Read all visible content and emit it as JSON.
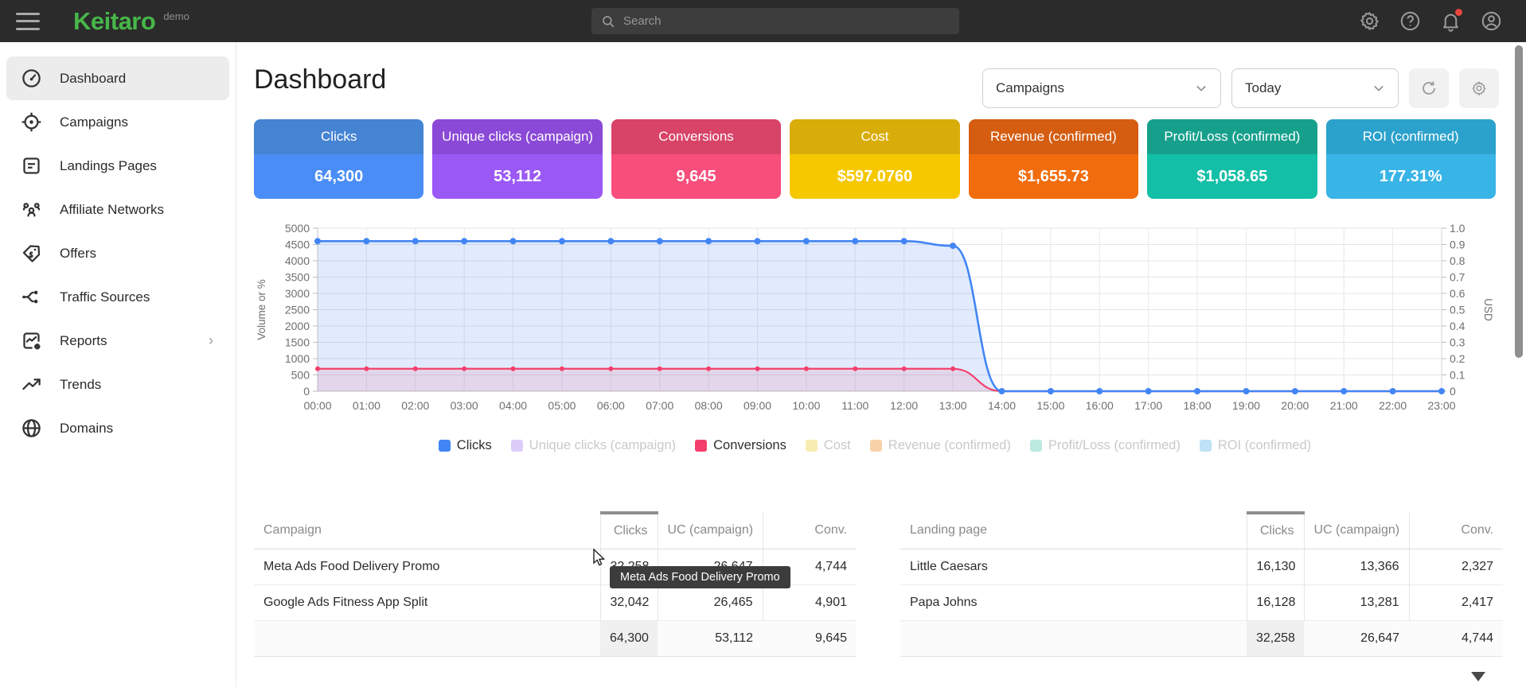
{
  "topbar": {
    "logo": "Keitaro",
    "env": "demo",
    "search_placeholder": "Search",
    "icons": [
      "settings-icon",
      "help-icon",
      "notifications-icon",
      "account-icon"
    ],
    "notification_dot_color": "#e8453c"
  },
  "sidebar": {
    "items": [
      {
        "label": "Dashboard",
        "icon": "dashboard",
        "active": true
      },
      {
        "label": "Campaigns",
        "icon": "campaigns",
        "active": false
      },
      {
        "label": "Landings Pages",
        "icon": "landings",
        "active": false
      },
      {
        "label": "Affiliate Networks",
        "icon": "affiliate",
        "active": false
      },
      {
        "label": "Offers",
        "icon": "offers",
        "active": false
      },
      {
        "label": "Traffic Sources",
        "icon": "traffic",
        "active": false
      },
      {
        "label": "Reports",
        "icon": "reports",
        "active": false,
        "has_submenu": true
      },
      {
        "label": "Trends",
        "icon": "trends",
        "active": false
      },
      {
        "label": "Domains",
        "icon": "domains",
        "active": false
      }
    ]
  },
  "header": {
    "title": "Dashboard",
    "campaign_filter": "Campaigns",
    "date_range": "Today"
  },
  "cards": [
    {
      "label": "Clicks",
      "value": "64,300",
      "header_color": "#4583d3",
      "body_color": "#4a8df6"
    },
    {
      "label": "Unique clicks (campaign)",
      "value": "53,112",
      "header_color": "#8b49d7",
      "body_color": "#9a58f5"
    },
    {
      "label": "Conversions",
      "value": "9,645",
      "header_color": "#d84368",
      "body_color": "#f74e7b"
    },
    {
      "label": "Cost",
      "value": "$597.0760",
      "header_color": "#d9ad09",
      "body_color": "#f6c800"
    },
    {
      "label": "Revenue (confirmed)",
      "value": "$1,655.73",
      "header_color": "#d45d11",
      "body_color": "#f16c0c"
    },
    {
      "label": "Profit/Loss (confirmed)",
      "value": "$1,058.65",
      "header_color": "#16a08c",
      "body_color": "#13bfa6"
    },
    {
      "label": "ROI (confirmed)",
      "value": "177.31%",
      "header_color": "#2ba2cc",
      "body_color": "#39b4e6"
    }
  ],
  "chart_data": {
    "type": "line",
    "x": [
      "00:00",
      "01:00",
      "02:00",
      "03:00",
      "04:00",
      "05:00",
      "06:00",
      "07:00",
      "08:00",
      "09:00",
      "10:00",
      "11:00",
      "12:00",
      "13:00",
      "14:00",
      "15:00",
      "16:00",
      "17:00",
      "18:00",
      "19:00",
      "20:00",
      "21:00",
      "22:00",
      "23:00"
    ],
    "series": [
      {
        "name": "Clicks",
        "color": "#4285f4",
        "fill": "rgba(66,133,244,0.16)",
        "values": [
          4603,
          4603,
          4603,
          4603,
          4603,
          4603,
          4603,
          4603,
          4603,
          4603,
          4603,
          4603,
          4603,
          4461,
          0,
          0,
          0,
          0,
          0,
          0,
          0,
          0,
          0,
          0
        ]
      },
      {
        "name": "Conversions",
        "color": "#f43f6d",
        "fill": "rgba(244,63,109,0.12)",
        "values": [
          689,
          689,
          689,
          689,
          689,
          689,
          689,
          689,
          689,
          689,
          689,
          689,
          689,
          688,
          0,
          0,
          0,
          0,
          0,
          0,
          0,
          0,
          0,
          0
        ]
      }
    ],
    "ylabel_left": "Volume or %",
    "ylabel_right": "USD",
    "ylim_left": [
      0,
      5000
    ],
    "ylim_right": [
      0,
      1.0
    ],
    "left_ticks": [
      0,
      500,
      1000,
      1500,
      2000,
      2500,
      3000,
      3500,
      4000,
      4500,
      5000
    ],
    "right_ticks": [
      "0",
      "0.1",
      "0.2",
      "0.3",
      "0.4",
      "0.5",
      "0.6",
      "0.7",
      "0.8",
      "0.9",
      "1.0"
    ],
    "grid": true,
    "legend_position": "bottom"
  },
  "legend": [
    {
      "label": "Clicks",
      "swatch": "#4285f4",
      "active": true
    },
    {
      "label": "Unique clicks (campaign)",
      "swatch": "#ddccf8",
      "active": false
    },
    {
      "label": "Conversions",
      "swatch": "#f43f6d",
      "active": true
    },
    {
      "label": "Cost",
      "swatch": "#f8ecb2",
      "active": false
    },
    {
      "label": "Revenue (confirmed)",
      "swatch": "#f8d2a8",
      "active": false
    },
    {
      "label": "Profit/Loss (confirmed)",
      "swatch": "#bce9e0",
      "active": false
    },
    {
      "label": "ROI (confirmed)",
      "swatch": "#bfe2f6",
      "active": false
    }
  ],
  "tables": [
    {
      "name_header": "Campaign",
      "columns": [
        "Clicks",
        "UC (campaign)",
        "Conv."
      ],
      "sorted_column": "Clicks",
      "rows": [
        {
          "name": "Meta Ads Food Delivery Promo",
          "clicks": "32,258",
          "uc": "26,647",
          "conv": "4,744"
        },
        {
          "name": "Google Ads Fitness App Split",
          "clicks": "32,042",
          "uc": "26,465",
          "conv": "4,901"
        }
      ],
      "totals": {
        "clicks": "64,300",
        "uc": "53,112",
        "conv": "9,645"
      }
    },
    {
      "name_header": "Landing page",
      "columns": [
        "Clicks",
        "UC (campaign)",
        "Conv."
      ],
      "sorted_column": "Clicks",
      "rows": [
        {
          "name": "Little Caesars",
          "clicks": "16,130",
          "uc": "13,366",
          "conv": "2,327"
        },
        {
          "name": "Papa Johns",
          "clicks": "16,128",
          "uc": "13,281",
          "conv": "2,417"
        }
      ],
      "totals": {
        "clicks": "32,258",
        "uc": "26,647",
        "conv": "4,744"
      }
    }
  ],
  "tooltip": {
    "text": "Meta Ads Food Delivery Promo"
  }
}
